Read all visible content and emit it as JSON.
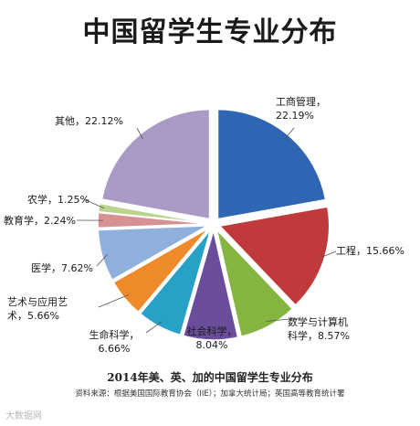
{
  "chart_data": {
    "type": "pie",
    "title": "中国留学生专业分布",
    "subtitle": "2014年美、英、加的中国留学生专业分布",
    "source": "资料来源：根据美国国际教育协会（IIE）；加拿大统计局；英国高等教育统计署",
    "slices": [
      {
        "label": "工商管理，\n22.19%",
        "value": 22.19,
        "color": "#2e66b3"
      },
      {
        "label": "工程，15.66%",
        "value": 15.66,
        "color": "#c0393b"
      },
      {
        "label": "数学与计算机\n科学，8.57%",
        "value": 8.57,
        "color": "#86b441"
      },
      {
        "label": "社会科学，\n8.04%",
        "value": 8.04,
        "color": "#6a4d9b"
      },
      {
        "label": "生命科学，\n6.66%",
        "value": 6.66,
        "color": "#27a2c6"
      },
      {
        "label": "艺术与应用艺\n术，5.66%",
        "value": 5.66,
        "color": "#ef8a2a"
      },
      {
        "label": "医学，7.62%",
        "value": 7.62,
        "color": "#8fb0dc"
      },
      {
        "label": "教育学，2.24%",
        "value": 2.24,
        "color": "#d69292"
      },
      {
        "label": "农学，1.25%",
        "value": 1.25,
        "color": "#b9d48c"
      },
      {
        "label": "其他，22.12%",
        "value": 22.12,
        "color": "#a99bc6"
      }
    ]
  },
  "watermark": "大数据网"
}
